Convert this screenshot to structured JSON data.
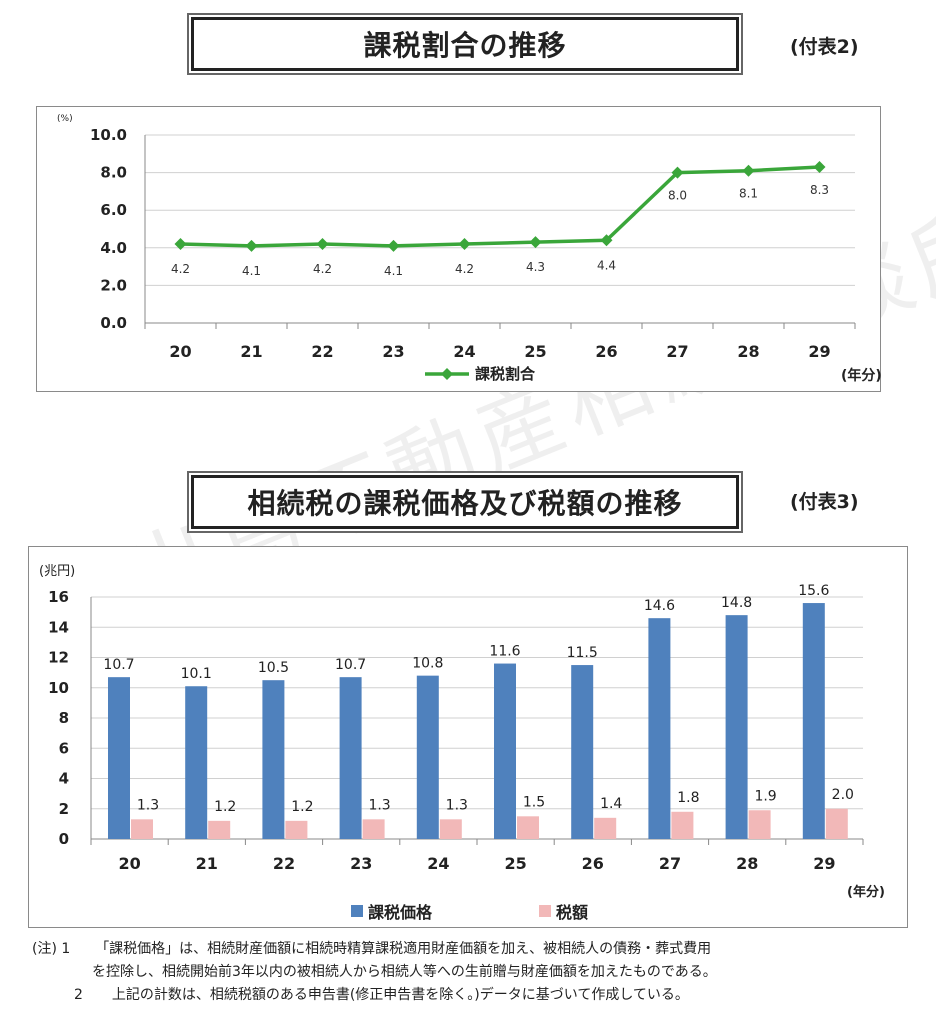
{
  "watermark": "出島不動産相続相談所",
  "section1": {
    "title": "課税割合の推移",
    "tag": "(付表2)"
  },
  "section2": {
    "title": "相続税の課税価格及び税額の推移",
    "tag": "(付表3)"
  },
  "chart_data": [
    {
      "type": "line",
      "categories": [
        "20",
        "21",
        "22",
        "23",
        "24",
        "25",
        "26",
        "27",
        "28",
        "29"
      ],
      "series": [
        {
          "name": "課税割合",
          "values": [
            4.2,
            4.1,
            4.2,
            4.1,
            4.2,
            4.3,
            4.4,
            8.0,
            8.1,
            8.3
          ],
          "color": "#3aa63a"
        }
      ],
      "ylabel": "(%)",
      "xlabel": "(年分)",
      "ylim": [
        0,
        10
      ],
      "yticks": [
        "0.0",
        "2.0",
        "4.0",
        "6.0",
        "8.0",
        "10.0"
      ],
      "data_labels": [
        "4.2",
        "4.1",
        "4.2",
        "4.1",
        "4.2",
        "4.3",
        "4.4",
        "8.0",
        "8.1",
        "8.3"
      ],
      "grid": true,
      "legend": "bottom"
    },
    {
      "type": "bar",
      "categories": [
        "20",
        "21",
        "22",
        "23",
        "24",
        "25",
        "26",
        "27",
        "28",
        "29"
      ],
      "series": [
        {
          "name": "課税価格",
          "values": [
            10.7,
            10.1,
            10.5,
            10.7,
            10.8,
            11.6,
            11.5,
            14.6,
            14.8,
            15.6
          ],
          "color": "#4f81bd",
          "labels": [
            "10.7",
            "10.1",
            "10.5",
            "10.7",
            "10.8",
            "11.6",
            "11.5",
            "14.6",
            "14.8",
            "15.6"
          ]
        },
        {
          "name": "税額",
          "values": [
            1.3,
            1.2,
            1.2,
            1.3,
            1.3,
            1.5,
            1.4,
            1.8,
            1.9,
            2.0
          ],
          "color": "#f2b8b8",
          "labels": [
            "1.3",
            "1.2",
            "1.2",
            "1.3",
            "1.3",
            "1.5",
            "1.4",
            "1.8",
            "1.9",
            "2.0"
          ]
        }
      ],
      "ylabel": "(兆円)",
      "xlabel": "(年分)",
      "ylim": [
        0,
        16
      ],
      "yticks": [
        "0",
        "2",
        "4",
        "6",
        "8",
        "10",
        "12",
        "14",
        "16"
      ],
      "grid": true,
      "legend": "bottom"
    }
  ],
  "notes": [
    {
      "prefix": "(注) 1",
      "text": "「課税価格」は、相続財産価額に相続時精算課税適用財産価額を加え、被相続人の債務・葬式費用"
    },
    {
      "prefix": "",
      "text": "を控除し、相続開始前3年以内の被相続人から相続人等への生前贈与財産価額を加えたものである。"
    },
    {
      "prefix": "2",
      "text": "上記の計数は、相続税額のある申告書(修正申告書を除く。)データに基づいて作成している。"
    }
  ]
}
